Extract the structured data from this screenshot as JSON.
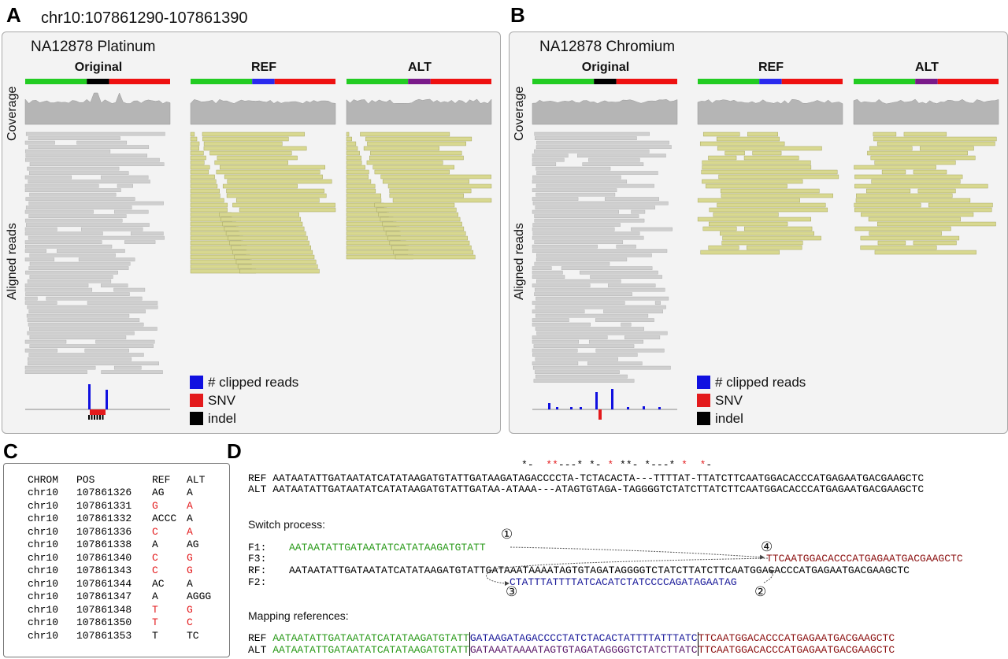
{
  "panel_a": {
    "label": "A",
    "region": "chr10:107861290-107861390",
    "title": "NA12878 Platinum",
    "columns": [
      "Original",
      "REF",
      "ALT"
    ]
  },
  "panel_b": {
    "label": "B",
    "title": "NA12878 Chromium",
    "columns": [
      "Original",
      "REF",
      "ALT"
    ]
  },
  "axis_labels": {
    "coverage": "Coverage",
    "aligned": "Aligned reads"
  },
  "legend": [
    {
      "label": "# clipped reads",
      "color": "#1010e0"
    },
    {
      "label": "SNV",
      "color": "#e31a1c"
    },
    {
      "label": "indel",
      "color": "#000000"
    }
  ],
  "colors": {
    "green": "#22cc22",
    "blue": "#2a2aee",
    "red": "#ee1111",
    "black": "#000000",
    "purple": "#7a1a8a",
    "grey_read": "#cfcfcf",
    "yellow_read": "#d8d890",
    "coverage": "#b5b5b5"
  },
  "panel_c": {
    "label": "C",
    "headers": [
      "CHROM",
      "POS",
      "REF",
      "ALT"
    ],
    "rows": [
      {
        "chrom": "chr10",
        "pos": "107861326",
        "ref": "AG",
        "alt": "A",
        "snv": false
      },
      {
        "chrom": "chr10",
        "pos": "107861331",
        "ref": "G",
        "alt": "A",
        "snv": true
      },
      {
        "chrom": "chr10",
        "pos": "107861332",
        "ref": "ACCC",
        "alt": "A",
        "snv": false
      },
      {
        "chrom": "chr10",
        "pos": "107861336",
        "ref": "C",
        "alt": "A",
        "snv": true
      },
      {
        "chrom": "chr10",
        "pos": "107861338",
        "ref": "A",
        "alt": "AG",
        "snv": false
      },
      {
        "chrom": "chr10",
        "pos": "107861340",
        "ref": "C",
        "alt": "G",
        "snv": true
      },
      {
        "chrom": "chr10",
        "pos": "107861343",
        "ref": "C",
        "alt": "G",
        "snv": true
      },
      {
        "chrom": "chr10",
        "pos": "107861344",
        "ref": "AC",
        "alt": "A",
        "snv": false
      },
      {
        "chrom": "chr10",
        "pos": "107861347",
        "ref": "A",
        "alt": "AGGG",
        "snv": false
      },
      {
        "chrom": "chr10",
        "pos": "107861348",
        "ref": "T",
        "alt": "G",
        "snv": true
      },
      {
        "chrom": "chr10",
        "pos": "107861350",
        "ref": "T",
        "alt": "C",
        "snv": true
      },
      {
        "chrom": "chr10",
        "pos": "107861353",
        "ref": "T",
        "alt": "TC",
        "snv": false
      }
    ]
  },
  "panel_d": {
    "label": "D",
    "star_line": "*-  **---* *- * **- *---* *  *-",
    "ref_line": {
      "tag": "REF",
      "seq": "AATAATATTGATAATATCATATAAGATGTATTGATAAGATAGACCCCTA-TCTACACTA---TTTTAT-TTATCTTCAATGGACACCCATGAGAATGACGAAGCTC"
    },
    "alt_line": {
      "tag": "ALT",
      "seq": "AATAATATTGATAATATCATATAAGATGTATTGATAA-ATAAA---ATAGTGTAGA-TAGGGGTCTATCTTATCTTCAATGGACACCCATGAGAATGACGAAGCTC"
    },
    "switch_title": "Switch process:",
    "f1": {
      "tag": "F1:",
      "seq": "AATAATATTGATAATATCATATAAGATGTATT"
    },
    "f3": {
      "tag": "F3:",
      "seq": "TTCAATGGACACCCATGAGAATGACGAAGCTC"
    },
    "rf": {
      "tag": "RF:",
      "seq": "AATAATATTGATAATATCATATAAGATGTATTGATAAATAAAATAGTGTAGATAGGGGTCTATCTTATCTTCAATGGACACCCATGAGAATGACGAAGCTC"
    },
    "f2": {
      "tag": "F2:",
      "seq": "CTATTTATTTTATCACATCTATCCCCAGATAGAATAG"
    },
    "steps": [
      "①",
      "②",
      "③",
      "④"
    ],
    "mapping_title": "Mapping references:",
    "map_ref": {
      "tag": "REF",
      "left": "AATAATATTGATAATATCATATAAGATGTATT",
      "mid": "GATAAGATAGACCCCTATCTACACTATTTTATTTATC",
      "right": "TTCAATGGACACCCATGAGAATGACGAAGCTC"
    },
    "map_alt": {
      "tag": "ALT",
      "left": "AATAATATTGATAATATCATATAAGATGTATT",
      "mid": "GATAAATAAAATAGTGTAGATAGGGGTCTATCTTATC",
      "right": "TTCAATGGACACCCATGAGAATGACGAAGCTC"
    }
  }
}
